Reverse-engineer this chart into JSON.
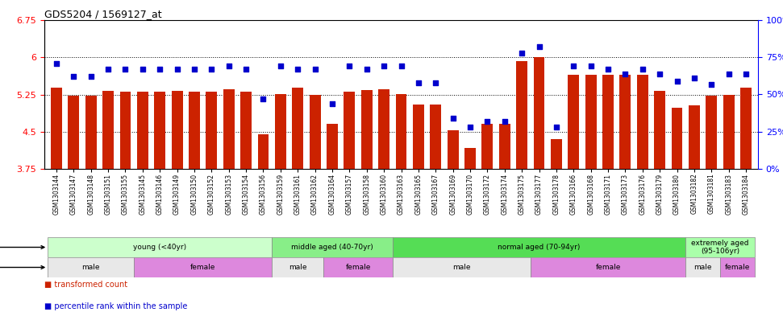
{
  "title": "GDS5204 / 1569127_at",
  "samples": [
    "GSM1303144",
    "GSM1303147",
    "GSM1303148",
    "GSM1303151",
    "GSM1303155",
    "GSM1303145",
    "GSM1303146",
    "GSM1303149",
    "GSM1303150",
    "GSM1303152",
    "GSM1303153",
    "GSM1303154",
    "GSM1303156",
    "GSM1303159",
    "GSM1303161",
    "GSM1303162",
    "GSM1303164",
    "GSM1303157",
    "GSM1303158",
    "GSM1303160",
    "GSM1303163",
    "GSM1303165",
    "GSM1303167",
    "GSM1303169",
    "GSM1303170",
    "GSM1303172",
    "GSM1303174",
    "GSM1303175",
    "GSM1303177",
    "GSM1303178",
    "GSM1303166",
    "GSM1303168",
    "GSM1303171",
    "GSM1303173",
    "GSM1303176",
    "GSM1303179",
    "GSM1303180",
    "GSM1303182",
    "GSM1303181",
    "GSM1303183",
    "GSM1303184"
  ],
  "bar_values": [
    5.38,
    5.22,
    5.22,
    5.32,
    5.3,
    5.3,
    5.3,
    5.32,
    5.3,
    5.3,
    5.35,
    5.3,
    4.45,
    5.26,
    5.38,
    5.25,
    4.65,
    5.3,
    5.34,
    5.36,
    5.26,
    5.04,
    5.05,
    4.53,
    4.17,
    4.65,
    4.65,
    5.93,
    6.0,
    4.35,
    5.65,
    5.65,
    5.65,
    5.65,
    5.65,
    5.32,
    4.98,
    5.03,
    5.23,
    5.24,
    5.38
  ],
  "dot_values": [
    71,
    62,
    62,
    67,
    67,
    67,
    67,
    67,
    67,
    67,
    69,
    67,
    47,
    69,
    67,
    67,
    44,
    69,
    67,
    69,
    69,
    58,
    58,
    34,
    28,
    32,
    32,
    78,
    82,
    28,
    69,
    69,
    67,
    64,
    67,
    64,
    59,
    61,
    57,
    64,
    64
  ],
  "ylim_left": [
    3.75,
    6.75
  ],
  "ylim_right": [
    0,
    100
  ],
  "yticks_left": [
    3.75,
    4.5,
    5.25,
    6.0,
    6.75
  ],
  "yticks_right": [
    0,
    25,
    50,
    75,
    100
  ],
  "ytick_labels_left": [
    "3.75",
    "4.5",
    "5.25",
    "6",
    "6.75"
  ],
  "ytick_labels_right": [
    "0%",
    "25%",
    "50%",
    "75%",
    "100%"
  ],
  "hlines": [
    6.0,
    5.25,
    4.5
  ],
  "bar_color": "#CC2200",
  "dot_color": "#0000CC",
  "age_groups": [
    {
      "label": "young (<40yr)",
      "start": 0,
      "end": 13,
      "color": "#CCFFCC"
    },
    {
      "label": "middle aged (40-70yr)",
      "start": 13,
      "end": 20,
      "color": "#88EE88"
    },
    {
      "label": "normal aged (70-94yr)",
      "start": 20,
      "end": 37,
      "color": "#55DD55"
    },
    {
      "label": "extremely aged\n(95-106yr)",
      "start": 37,
      "end": 41,
      "color": "#AAFFAA"
    }
  ],
  "gender_groups": [
    {
      "label": "male",
      "start": 0,
      "end": 5,
      "color": "#E8E8E8"
    },
    {
      "label": "female",
      "start": 5,
      "end": 13,
      "color": "#DD88DD"
    },
    {
      "label": "male",
      "start": 13,
      "end": 16,
      "color": "#E8E8E8"
    },
    {
      "label": "female",
      "start": 16,
      "end": 20,
      "color": "#DD88DD"
    },
    {
      "label": "male",
      "start": 20,
      "end": 28,
      "color": "#E8E8E8"
    },
    {
      "label": "female",
      "start": 28,
      "end": 37,
      "color": "#DD88DD"
    },
    {
      "label": "male",
      "start": 37,
      "end": 39,
      "color": "#E8E8E8"
    },
    {
      "label": "female",
      "start": 39,
      "end": 41,
      "color": "#DD88DD"
    }
  ],
  "legend_items": [
    {
      "label": "transformed count",
      "color": "#CC2200"
    },
    {
      "label": "percentile rank within the sample",
      "color": "#0000CC"
    }
  ],
  "bg_color": "#F0F0F0"
}
